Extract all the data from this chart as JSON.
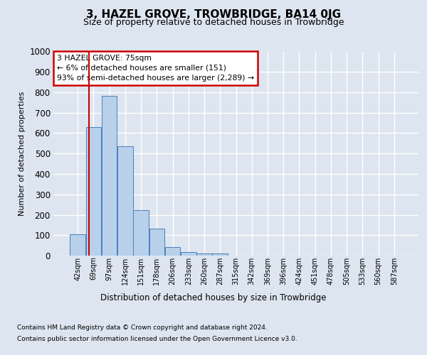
{
  "title": "3, HAZEL GROVE, TROWBRIDGE, BA14 0JG",
  "subtitle": "Size of property relative to detached houses in Trowbridge",
  "xlabel": "Distribution of detached houses by size in Trowbridge",
  "ylabel": "Number of detached properties",
  "categories": [
    "42sqm",
    "69sqm",
    "97sqm",
    "124sqm",
    "151sqm",
    "178sqm",
    "206sqm",
    "233sqm",
    "260sqm",
    "287sqm",
    "315sqm",
    "342sqm",
    "369sqm",
    "396sqm",
    "424sqm",
    "451sqm",
    "478sqm",
    "505sqm",
    "533sqm",
    "560sqm",
    "587sqm"
  ],
  "values": [
    103,
    628,
    783,
    537,
    222,
    133,
    42,
    17,
    10,
    12,
    0,
    0,
    0,
    0,
    0,
    0,
    0,
    0,
    0,
    0,
    0
  ],
  "bar_color": "#b8d0ea",
  "bar_edge_color": "#4a80b8",
  "property_line_color": "#cc0000",
  "annotation_line1": "3 HAZEL GROVE: 75sqm",
  "annotation_line2": "← 6% of detached houses are smaller (151)",
  "annotation_line3": "93% of semi-detached houses are larger (2,289) →",
  "annotation_box_edge_color": "#cc0000",
  "ylim": [
    0,
    1000
  ],
  "yticks": [
    0,
    100,
    200,
    300,
    400,
    500,
    600,
    700,
    800,
    900,
    1000
  ],
  "background_color": "#dde5f0",
  "plot_bg_color": "#dde5f0",
  "grid_color": "#ffffff",
  "footer_line1": "Contains HM Land Registry data © Crown copyright and database right 2024.",
  "footer_line2": "Contains public sector information licensed under the Open Government Licence v3.0."
}
